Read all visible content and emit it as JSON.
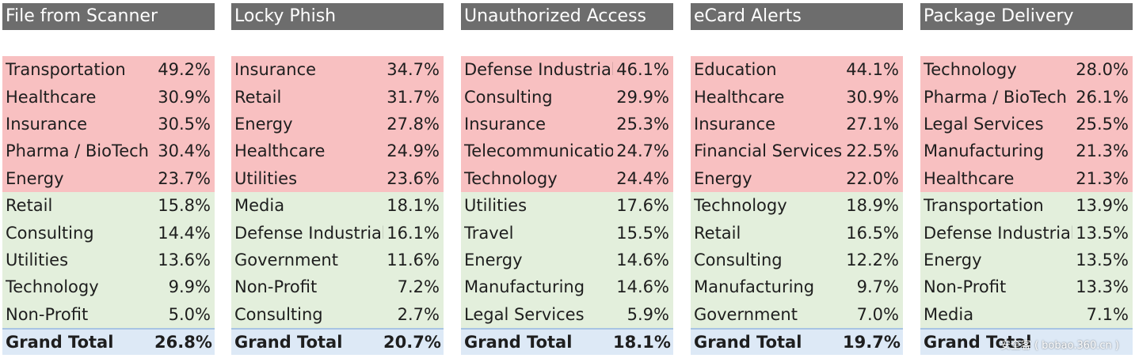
{
  "colors": {
    "header_bg": "#6d6d6d",
    "top_group_bg": "#f8c0c1",
    "bottom_group_bg": "#e3efdc",
    "total_bg": "#dde9f6"
  },
  "panels": [
    {
      "title": "File from Scanner",
      "top": [
        {
          "category": "Transportation",
          "value": "49.2%"
        },
        {
          "category": "Healthcare",
          "value": "30.9%"
        },
        {
          "category": "Insurance",
          "value": "30.5%"
        },
        {
          "category": "Pharma / BioTech",
          "value": "30.4%"
        },
        {
          "category": "Energy",
          "value": "23.7%"
        }
      ],
      "bottom": [
        {
          "category": "Retail",
          "value": "15.8%"
        },
        {
          "category": "Consulting",
          "value": "14.4%"
        },
        {
          "category": "Utilities",
          "value": "13.6%"
        },
        {
          "category": "Technology",
          "value": "9.9%"
        },
        {
          "category": "Non-Profit",
          "value": "5.0%"
        }
      ],
      "total": {
        "label": "Grand Total",
        "value": "26.8%"
      }
    },
    {
      "title": "Locky Phish",
      "top": [
        {
          "category": "Insurance",
          "value": "34.7%"
        },
        {
          "category": "Retail",
          "value": "31.7%"
        },
        {
          "category": "Energy",
          "value": "27.8%"
        },
        {
          "category": "Healthcare",
          "value": "24.9%"
        },
        {
          "category": "Utilities",
          "value": "23.6%"
        }
      ],
      "bottom": [
        {
          "category": "Media",
          "value": "18.1%"
        },
        {
          "category": "Defense Industrial",
          "value": "16.1%"
        },
        {
          "category": "Government",
          "value": "11.6%"
        },
        {
          "category": "Non-Profit",
          "value": "7.2%"
        },
        {
          "category": "Consulting",
          "value": "2.7%"
        }
      ],
      "total": {
        "label": "Grand Total",
        "value": "20.7%"
      }
    },
    {
      "title": "Unauthorized Access",
      "top": [
        {
          "category": "Defense Industrial",
          "value": "46.1%"
        },
        {
          "category": "Consulting",
          "value": "29.9%"
        },
        {
          "category": "Insurance",
          "value": "25.3%"
        },
        {
          "category": "Telecommunications",
          "value": "24.7%"
        },
        {
          "category": "Technology",
          "value": "24.4%"
        }
      ],
      "bottom": [
        {
          "category": "Utilities",
          "value": "17.6%"
        },
        {
          "category": "Travel",
          "value": "15.5%"
        },
        {
          "category": "Energy",
          "value": "14.6%"
        },
        {
          "category": "Manufacturing",
          "value": "14.6%"
        },
        {
          "category": "Legal Services",
          "value": "5.9%"
        }
      ],
      "total": {
        "label": "Grand Total",
        "value": "18.1%"
      }
    },
    {
      "title": "eCard Alerts",
      "top": [
        {
          "category": "Education",
          "value": "44.1%"
        },
        {
          "category": "Healthcare",
          "value": "30.9%"
        },
        {
          "category": "Insurance",
          "value": "27.1%"
        },
        {
          "category": "Financial Services",
          "value": "22.5%"
        },
        {
          "category": "Energy",
          "value": "22.0%"
        }
      ],
      "bottom": [
        {
          "category": "Technology",
          "value": "18.9%"
        },
        {
          "category": "Retail",
          "value": "16.5%"
        },
        {
          "category": "Consulting",
          "value": "12.2%"
        },
        {
          "category": "Manufacturing",
          "value": "9.7%"
        },
        {
          "category": "Government",
          "value": "7.0%"
        }
      ],
      "total": {
        "label": "Grand Total",
        "value": "19.7%"
      }
    },
    {
      "title": "Package Delivery",
      "top": [
        {
          "category": "Technology",
          "value": "28.0%"
        },
        {
          "category": "Pharma / BioTech",
          "value": "26.1%"
        },
        {
          "category": "Legal Services",
          "value": "25.5%"
        },
        {
          "category": "Manufacturing",
          "value": "21.3%"
        },
        {
          "category": "Healthcare",
          "value": "21.3%"
        }
      ],
      "bottom": [
        {
          "category": "Transportation",
          "value": "13.9%"
        },
        {
          "category": "Defense Industrial",
          "value": "13.5%"
        },
        {
          "category": "Energy",
          "value": "13.5%"
        },
        {
          "category": "Non-Profit",
          "value": "13.3%"
        },
        {
          "category": "Media",
          "value": "7.1%"
        }
      ],
      "total": {
        "label": "Grand Total",
        "value": ""
      }
    }
  ],
  "watermark": "安全客 ( bobao.360.cn )"
}
